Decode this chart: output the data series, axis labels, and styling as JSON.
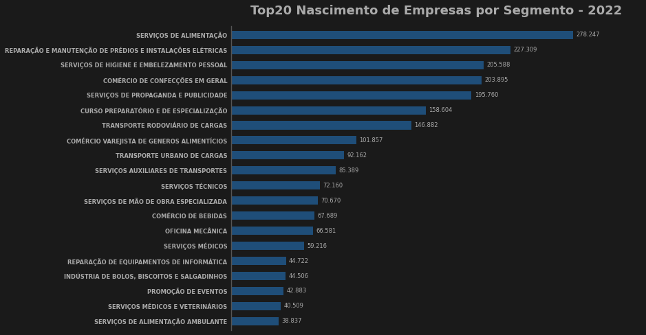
{
  "title": "Top20 Nascimento de Empresas por Segmento - 2022",
  "categories": [
    "SERVIÇOS DE ALIMENTAÇÃO AMBULANTE",
    "SERVIÇOS MÉDICOS E VETERINÁRIOS",
    "PROMOÇÃO DE EVENTOS",
    "INDÚSTRIA DE BOLOS, BISCOITOS E SALGADINHOS",
    "REPARAÇÃO DE EQUIPAMENTOS DE INFORMÁTICA",
    "SERVIÇOS MÉDICOS",
    "OFICINA MECÂNICA",
    "COMÉRCIO DE BEBIDAS",
    "SERVIÇOS DE MÃO DE OBRA ESPECIALIZADA",
    "SERVIÇOS TÉCNICOS",
    "SERVIÇOS AUXILIARES DE TRANSPORTES",
    "TRANSPORTE URBANO DE CARGAS",
    "COMÉRCIO VAREJISTA DE GENEROS ALIMENTÍCIOS",
    "TRANSPORTE RODOVIÁRIO DE CARGAS",
    "CURSO PREPARATÓRIO E DE ESPECIALIZAÇÃO",
    "SERVIÇOS DE PROPAGANDA E PUBLICIDADE",
    "COMÉRCIO DE CONFECÇÕES EM GERAL",
    "SERVIÇOS DE HIGIENE E EMBELEZAMENTO PESSOAL",
    "REPARAÇÃO E MANUTENÇÃO DE PRÉDIOS E INSTALAÇÕES ELÉTRICAS",
    "SERVIÇOS DE ALIMENTAÇÃO"
  ],
  "values": [
    38837,
    40509,
    42883,
    44506,
    44722,
    59216,
    66581,
    67689,
    70670,
    72160,
    85389,
    92162,
    101857,
    146882,
    158604,
    195760,
    203895,
    205588,
    227309,
    278247
  ],
  "value_labels": [
    "38.837",
    "40.509",
    "42.883",
    "44.506",
    "44.722",
    "59.216",
    "66.581",
    "67.689",
    "70.670",
    "72.160",
    "85.389",
    "92.162",
    "101.857",
    "146.882",
    "158.604",
    "195.760",
    "203.895",
    "205.588",
    "227.309",
    "278.247"
  ],
  "bar_color": "#1F4E79",
  "background_color": "#1a1a1a",
  "text_color": "#aaaaaa",
  "title_color": "#aaaaaa",
  "title_fontsize": 13,
  "label_fontsize": 6.0,
  "value_fontsize": 6.0,
  "bar_height": 0.55,
  "xlim_factor": 1.2
}
